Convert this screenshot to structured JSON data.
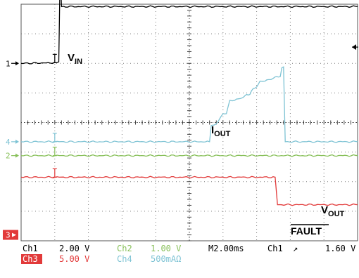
{
  "chart_data": {
    "type": "line",
    "title": "",
    "xlabel": "",
    "ylabel": "",
    "grid": true,
    "grid_divisions": {
      "x": 10,
      "y": 8
    },
    "timebase": "M2.00ms",
    "x_unit": "div",
    "y_unit": "div",
    "xlim": [
      0,
      10
    ],
    "ylim": [
      0,
      8
    ],
    "series": [
      {
        "name": "Ch1",
        "colour": "#000000",
        "x": [
          0,
          1.05,
          1.12,
          1.16,
          1.2,
          10
        ],
        "y": [
          6.0,
          6.02,
          6.05,
          9.08,
          7.92,
          7.92
        ]
      },
      {
        "name": "Ch4",
        "colour": "#7ec3d4",
        "x": [
          0,
          5.6,
          5.65,
          5.8,
          6.0,
          6.1,
          6.2,
          6.35,
          6.45,
          6.6,
          6.7,
          6.8,
          6.9,
          7.0,
          7.1,
          7.25,
          7.35,
          7.5,
          7.6,
          7.7,
          7.75,
          7.8,
          7.85,
          10
        ],
        "y": [
          3.35,
          3.35,
          3.9,
          3.95,
          4.3,
          4.3,
          4.75,
          4.75,
          4.8,
          4.85,
          4.95,
          4.95,
          5.15,
          5.2,
          5.4,
          5.4,
          5.45,
          5.5,
          5.55,
          5.55,
          5.85,
          5.88,
          3.35,
          3.35
        ]
      },
      {
        "name": "Ch2",
        "colour": "#88c05a",
        "x": [
          0,
          10
        ],
        "y": [
          2.88,
          2.88
        ]
      },
      {
        "name": "Ch3",
        "colour": "#e23a3a",
        "x": [
          0,
          7.55,
          7.62,
          10
        ],
        "y": [
          2.15,
          2.15,
          1.22,
          1.22
        ]
      }
    ],
    "annotations": [
      {
        "text": "V",
        "sub": "IN"
      },
      {
        "text": "I",
        "sub": "OUT"
      },
      {
        "text": "V",
        "sub": "OUT"
      },
      {
        "text": "FAULT",
        "overline": true
      }
    ],
    "channel_markers": [
      "1",
      "4",
      "2",
      "3"
    ],
    "readout": [
      [
        "Ch1",
        "2.00 V",
        "Ch2",
        "1.00 V",
        "M2.00ms",
        "Ch1",
        "↗",
        "1.60 V"
      ],
      [
        "Ch3",
        "5.00 V",
        "Ch4",
        "500mAΩ"
      ]
    ]
  }
}
